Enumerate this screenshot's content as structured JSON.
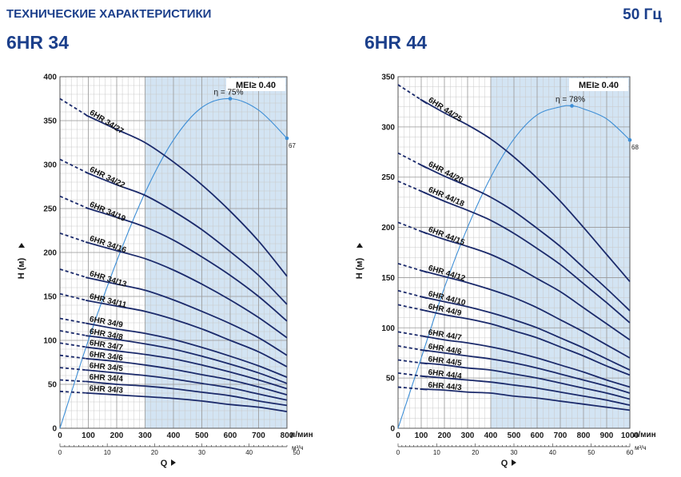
{
  "page": {
    "title": "ТЕХНИЧЕСКИЕ ХАРАКТЕРИСТИКИ",
    "frequency": "50 Гц"
  },
  "chart_data": [
    {
      "type": "line",
      "title": "6HR 34",
      "xlabel": "Q",
      "ylabel": "H (м)",
      "x_unit": "л/мин",
      "x2_unit": "м³/ч",
      "xlim": [
        0,
        800
      ],
      "ylim": [
        0,
        400
      ],
      "x_ticks": [
        0,
        100,
        200,
        300,
        400,
        500,
        600,
        700,
        800
      ],
      "y_ticks": [
        0,
        50,
        100,
        150,
        200,
        250,
        300,
        350,
        400
      ],
      "x2_ticks": [
        0,
        10,
        20,
        30,
        40,
        50
      ],
      "grid": true,
      "mei_label": "MEI≥ 0.40",
      "efficiency_band": [
        300,
        800
      ],
      "efficiency_curve": {
        "label": "η = 75%",
        "end_label": "67",
        "x": [
          0,
          100,
          200,
          300,
          400,
          500,
          600,
          700,
          800
        ],
        "y": [
          0,
          100,
          190,
          268,
          328,
          365,
          375,
          362,
          330
        ]
      },
      "series": [
        {
          "name": "6HR 34/27",
          "x": [
            0,
            100,
            200,
            300,
            400,
            500,
            600,
            700,
            800
          ],
          "y": [
            375,
            355,
            340,
            325,
            303,
            277,
            247,
            213,
            173
          ]
        },
        {
          "name": "6HR 34/22",
          "x": [
            0,
            100,
            200,
            300,
            400,
            500,
            600,
            700,
            800
          ],
          "y": [
            306,
            290,
            277,
            265,
            247,
            226,
            201,
            174,
            141
          ]
        },
        {
          "name": "6HR 34/19",
          "x": [
            0,
            100,
            200,
            300,
            400,
            500,
            600,
            700,
            800
          ],
          "y": [
            264,
            250,
            240,
            229,
            214,
            195,
            174,
            150,
            122
          ]
        },
        {
          "name": "6HR 34/16",
          "x": [
            0,
            100,
            200,
            300,
            400,
            500,
            600,
            700,
            800
          ],
          "y": [
            222,
            211,
            202,
            193,
            180,
            164,
            146,
            126,
            103
          ]
        },
        {
          "name": "6HR 34/13",
          "x": [
            0,
            100,
            200,
            300,
            400,
            500,
            600,
            700,
            800
          ],
          "y": [
            181,
            171,
            164,
            157,
            146,
            133,
            119,
            103,
            83
          ]
        },
        {
          "name": "6HR 34/11",
          "x": [
            0,
            100,
            200,
            300,
            400,
            500,
            600,
            700,
            800
          ],
          "y": [
            153,
            145,
            139,
            133,
            124,
            113,
            100,
            87,
            70
          ]
        },
        {
          "name": "6HR 34/9",
          "x": [
            0,
            100,
            200,
            300,
            400,
            500,
            600,
            700,
            800
          ],
          "y": [
            125,
            119,
            113,
            108,
            101,
            92,
            82,
            71,
            58
          ]
        },
        {
          "name": "6HR 34/8",
          "x": [
            0,
            100,
            200,
            300,
            400,
            500,
            600,
            700,
            800
          ],
          "y": [
            111,
            105,
            101,
            96,
            90,
            82,
            73,
            63,
            51
          ]
        },
        {
          "name": "6HR 34/7",
          "x": [
            0,
            100,
            200,
            300,
            400,
            500,
            600,
            700,
            800
          ],
          "y": [
            97,
            92,
            88,
            84,
            79,
            72,
            64,
            55,
            45
          ]
        },
        {
          "name": "6HR 34/6",
          "x": [
            0,
            100,
            200,
            300,
            400,
            500,
            600,
            700,
            800
          ],
          "y": [
            83,
            79,
            76,
            72,
            67,
            61,
            55,
            47,
            38
          ]
        },
        {
          "name": "6HR 34/5",
          "x": [
            0,
            100,
            200,
            300,
            400,
            500,
            600,
            700,
            800
          ],
          "y": [
            69,
            66,
            63,
            60,
            56,
            51,
            46,
            39,
            32
          ]
        },
        {
          "name": "6HR 34/4",
          "x": [
            0,
            100,
            200,
            300,
            400,
            500,
            600,
            700,
            800
          ],
          "y": [
            55,
            53,
            50,
            48,
            45,
            41,
            37,
            31,
            26
          ]
        },
        {
          "name": "6HR 34/3",
          "x": [
            0,
            100,
            200,
            300,
            400,
            500,
            600,
            700,
            800
          ],
          "y": [
            42,
            40,
            38,
            36,
            34,
            31,
            27,
            24,
            19
          ]
        }
      ]
    },
    {
      "type": "line",
      "title": "6HR 44",
      "xlabel": "Q",
      "ylabel": "H (м)",
      "x_unit": "л/мин",
      "x2_unit": "м³/ч",
      "xlim": [
        0,
        1000
      ],
      "ylim": [
        0,
        350
      ],
      "x_ticks": [
        0,
        100,
        200,
        300,
        400,
        500,
        600,
        700,
        800,
        900,
        1000
      ],
      "y_ticks": [
        0,
        50,
        100,
        150,
        200,
        250,
        300,
        350
      ],
      "x2_ticks": [
        0,
        10,
        20,
        30,
        40,
        50,
        60
      ],
      "grid": true,
      "mei_label": "MEI≥ 0.40",
      "efficiency_band": [
        400,
        1000
      ],
      "efficiency_curve": {
        "label": "η = 78%",
        "end_label": "68",
        "x": [
          0,
          100,
          200,
          300,
          400,
          500,
          600,
          700,
          750,
          800,
          900,
          1000
        ],
        "y": [
          0,
          70,
          140,
          200,
          250,
          288,
          312,
          320,
          321,
          318,
          308,
          287
        ]
      },
      "series": [
        {
          "name": "6HR 44/25",
          "x": [
            0,
            100,
            200,
            300,
            400,
            500,
            600,
            700,
            800,
            900,
            1000
          ],
          "y": [
            342,
            327,
            314,
            302,
            288,
            270,
            249,
            226,
            200,
            173,
            146
          ]
        },
        {
          "name": "6HR 44/20",
          "x": [
            0,
            100,
            200,
            300,
            400,
            500,
            600,
            700,
            800,
            900,
            1000
          ],
          "y": [
            274,
            262,
            251,
            241,
            230,
            216,
            199,
            181,
            160,
            139,
            117
          ]
        },
        {
          "name": "6HR 44/18",
          "x": [
            0,
            100,
            200,
            300,
            400,
            500,
            600,
            700,
            800,
            900,
            1000
          ],
          "y": [
            246,
            236,
            226,
            217,
            207,
            194,
            179,
            163,
            144,
            125,
            105
          ]
        },
        {
          "name": "6HR 44/15",
          "x": [
            0,
            100,
            200,
            300,
            400,
            500,
            600,
            700,
            800,
            900,
            1000
          ],
          "y": [
            205,
            196,
            188,
            181,
            173,
            162,
            149,
            136,
            120,
            104,
            88
          ]
        },
        {
          "name": "6HR 44/12",
          "x": [
            0,
            100,
            200,
            300,
            400,
            500,
            600,
            700,
            800,
            900,
            1000
          ],
          "y": [
            164,
            157,
            151,
            145,
            138,
            130,
            120,
            108,
            96,
            83,
            70
          ]
        },
        {
          "name": "6HR 44/10",
          "x": [
            0,
            100,
            200,
            300,
            400,
            500,
            600,
            700,
            800,
            900,
            1000
          ],
          "y": [
            137,
            131,
            126,
            121,
            115,
            108,
            100,
            90,
            80,
            69,
            58
          ]
        },
        {
          "name": "6HR 44/9",
          "x": [
            0,
            100,
            200,
            300,
            400,
            500,
            600,
            700,
            800,
            900,
            1000
          ],
          "y": [
            123,
            118,
            113,
            109,
            104,
            97,
            90,
            81,
            72,
            62,
            53
          ]
        },
        {
          "name": "6HR 44/7",
          "x": [
            0,
            100,
            200,
            300,
            400,
            500,
            600,
            700,
            800,
            900,
            1000
          ],
          "y": [
            96,
            92,
            88,
            85,
            81,
            76,
            70,
            63,
            56,
            48,
            41
          ]
        },
        {
          "name": "6HR 44/6",
          "x": [
            0,
            100,
            200,
            300,
            400,
            500,
            600,
            700,
            800,
            900,
            1000
          ],
          "y": [
            82,
            78,
            75,
            72,
            69,
            65,
            60,
            54,
            48,
            42,
            35
          ]
        },
        {
          "name": "6HR 44/5",
          "x": [
            0,
            100,
            200,
            300,
            400,
            500,
            600,
            700,
            800,
            900,
            1000
          ],
          "y": [
            68,
            65,
            63,
            60,
            58,
            54,
            50,
            45,
            40,
            35,
            29
          ]
        },
        {
          "name": "6HR 44/4",
          "x": [
            0,
            100,
            200,
            300,
            400,
            500,
            600,
            700,
            800,
            900,
            1000
          ],
          "y": [
            55,
            52,
            50,
            48,
            46,
            43,
            40,
            36,
            32,
            28,
            23
          ]
        },
        {
          "name": "6HR 44/3",
          "x": [
            0,
            100,
            200,
            300,
            400,
            500,
            600,
            700,
            800,
            900,
            1000
          ],
          "y": [
            41,
            39,
            38,
            36,
            35,
            32,
            30,
            27,
            24,
            21,
            18
          ]
        }
      ]
    }
  ]
}
